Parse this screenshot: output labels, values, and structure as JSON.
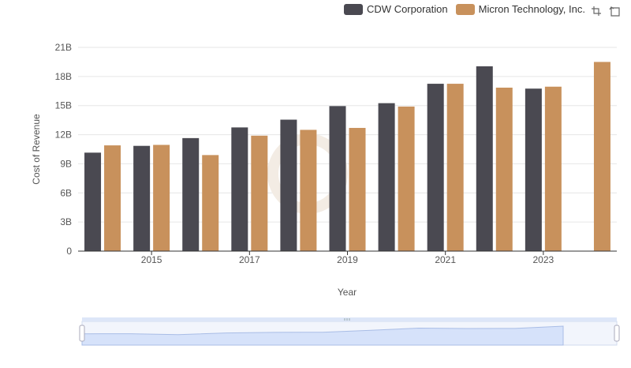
{
  "chart_data": {
    "type": "bar",
    "xlabel": "Year",
    "ylabel": "Cost of Revenue",
    "categories": [
      "2014",
      "2015",
      "2016",
      "2017",
      "2018",
      "2019",
      "2020",
      "2021",
      "2022",
      "2023",
      "2024"
    ],
    "x_tick_labels": [
      "2015",
      "2017",
      "2019",
      "2021",
      "2023"
    ],
    "y_ticks": [
      0,
      3,
      6,
      9,
      12,
      15,
      18,
      21
    ],
    "y_tick_labels": [
      "0",
      "3B",
      "6B",
      "9B",
      "12B",
      "15B",
      "18B",
      "21B"
    ],
    "ylim": [
      0,
      21
    ],
    "value_unit": "billions",
    "grid": true,
    "legend_position": "top-right",
    "series": [
      {
        "name": "CDW Corporation",
        "color": "#4a4951",
        "values": [
          10.15,
          10.85,
          11.65,
          12.75,
          13.55,
          14.95,
          15.25,
          17.25,
          19.05,
          16.75,
          null
        ]
      },
      {
        "name": "Micron Technology, Inc.",
        "color": "#c8915c",
        "values": [
          10.9,
          10.95,
          9.9,
          11.9,
          12.5,
          12.7,
          14.9,
          17.25,
          16.85,
          16.95,
          19.5
        ]
      }
    ],
    "data_zoom": {
      "range_percent": [
        0,
        100
      ]
    }
  },
  "toolbox": {
    "zoom_icon": "zoom-select-icon",
    "restore_icon": "restore-icon"
  }
}
